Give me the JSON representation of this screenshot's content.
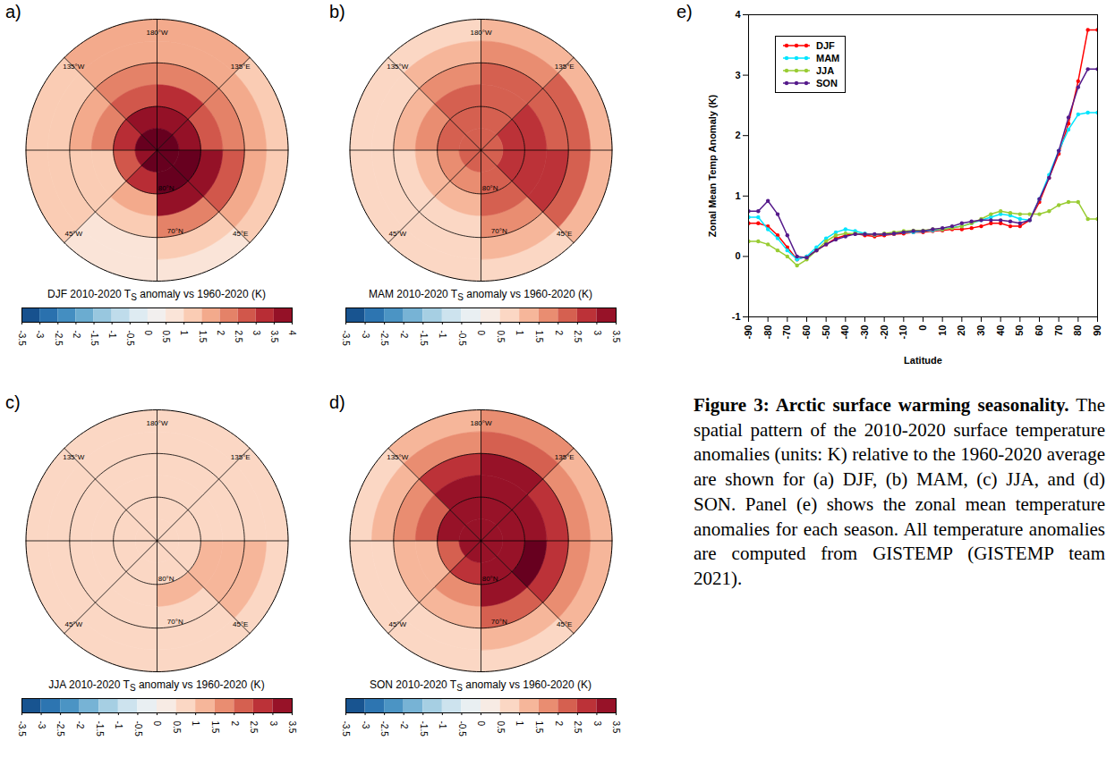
{
  "chart_data": [
    {
      "type": "map",
      "panel": "a)",
      "title": {
        "before": "DJF 2010-2020 T",
        "sub": "S",
        "after": " anomaly vs 1960-2020 (K)"
      },
      "lat_edges": [
        60,
        65,
        70,
        75,
        80,
        85,
        90
      ],
      "lon_edges": [
        -180,
        -135,
        -90,
        -45,
        0,
        45,
        90,
        135,
        180
      ],
      "cells": [
        [
          1.5,
          1.0,
          1.0,
          0.8,
          0.9,
          1.2,
          1.3,
          1.5
        ],
        [
          1.8,
          1.3,
          1.2,
          0.8,
          1.2,
          1.8,
          1.6,
          1.9
        ],
        [
          2.3,
          1.6,
          1.0,
          1.0,
          2.2,
          2.8,
          2.0,
          2.4
        ],
        [
          2.8,
          2.2,
          1.3,
          1.6,
          3.5,
          3.6,
          2.8,
          3.0
        ],
        [
          3.5,
          3.2,
          2.5,
          3.0,
          4.0,
          4.0,
          3.6,
          3.6
        ],
        [
          4.0,
          4.0,
          3.8,
          4.0,
          4.0,
          4.0,
          4.0,
          4.0
        ]
      ],
      "colorbar": {
        "range": [
          -3.5,
          4
        ],
        "ticks": [
          -3.5,
          -3,
          -2.5,
          -2,
          -1.5,
          -1,
          -0.5,
          0,
          0.5,
          1,
          1.5,
          2,
          2.5,
          3,
          3.5,
          4
        ]
      },
      "parallels": [
        {
          "value": 70,
          "label": "70°N"
        },
        {
          "value": 80,
          "label": "80°N"
        }
      ],
      "meridians": [
        {
          "value": 180,
          "label": "180°W"
        },
        {
          "value": -135,
          "label": "135°W"
        },
        {
          "value": -90
        },
        {
          "value": -45,
          "label": "45°W"
        },
        {
          "value": 0
        },
        {
          "value": 45,
          "label": "45°E"
        },
        {
          "value": 90
        },
        {
          "value": 135,
          "label": "135°E"
        }
      ]
    },
    {
      "type": "map",
      "panel": "b)",
      "title": {
        "before": "MAM 2010-2020 T",
        "sub": "S",
        "after": " anomaly vs 1960-2020 (K)"
      },
      "lat_edges": [
        60,
        65,
        70,
        75,
        80,
        85,
        90
      ],
      "lon_edges": [
        -180,
        -135,
        -90,
        -45,
        0,
        45,
        90,
        135,
        180
      ],
      "cells": [
        [
          0.8,
          0.6,
          0.6,
          0.5,
          0.8,
          1.2,
          1.4,
          1.0
        ],
        [
          1.3,
          0.9,
          0.7,
          0.5,
          1.2,
          2.0,
          2.0,
          1.5
        ],
        [
          1.8,
          1.2,
          0.8,
          0.8,
          1.8,
          2.5,
          2.3,
          2.0
        ],
        [
          2.0,
          1.6,
          1.0,
          1.2,
          2.2,
          2.7,
          2.5,
          2.3
        ],
        [
          2.2,
          2.0,
          1.6,
          1.8,
          2.4,
          2.6,
          2.5,
          2.4
        ],
        [
          2.4,
          2.4,
          2.3,
          2.3,
          2.4,
          2.4,
          2.4,
          2.4
        ]
      ],
      "colorbar": {
        "range": [
          -3.5,
          3.5
        ],
        "ticks": [
          -3.5,
          -3,
          -2.5,
          -2,
          -1.5,
          -1,
          -0.5,
          0,
          0.5,
          1,
          1.5,
          2,
          2.5,
          3,
          3.5
        ]
      },
      "parallels": [
        {
          "value": 70,
          "label": "70°N"
        },
        {
          "value": 80,
          "label": "80°N"
        }
      ],
      "meridians": [
        {
          "value": 180,
          "label": "180°W"
        },
        {
          "value": -135,
          "label": "135°W"
        },
        {
          "value": -90
        },
        {
          "value": -45,
          "label": "45°W"
        },
        {
          "value": 0
        },
        {
          "value": 45,
          "label": "45°E"
        },
        {
          "value": 90
        },
        {
          "value": 135,
          "label": "135°E"
        }
      ]
    },
    {
      "type": "map",
      "panel": "c)",
      "title": {
        "before": "JJA 2010-2020 T",
        "sub": "S",
        "after": " anomaly vs 1960-2020 (K)"
      },
      "lat_edges": [
        60,
        65,
        70,
        75,
        80,
        85,
        90
      ],
      "lon_edges": [
        -180,
        -135,
        -90,
        -45,
        0,
        45,
        90,
        135,
        180
      ],
      "cells": [
        [
          0.7,
          0.7,
          0.6,
          0.5,
          0.6,
          0.8,
          0.8,
          0.7
        ],
        [
          0.7,
          0.6,
          0.7,
          0.6,
          0.7,
          1.0,
          0.8,
          0.7
        ],
        [
          0.6,
          0.6,
          0.7,
          0.6,
          0.9,
          1.3,
          0.9,
          0.7
        ],
        [
          0.6,
          0.6,
          0.6,
          0.6,
          1.0,
          1.2,
          0.8,
          0.7
        ],
        [
          0.6,
          0.6,
          0.6,
          0.6,
          0.8,
          0.9,
          0.7,
          0.6
        ],
        [
          0.6,
          0.6,
          0.6,
          0.6,
          0.6,
          0.6,
          0.6,
          0.6
        ]
      ],
      "colorbar": {
        "range": [
          -3.5,
          3.5
        ],
        "ticks": [
          -3.5,
          -3,
          -2.5,
          -2,
          -1.5,
          -1,
          -0.5,
          0,
          0.5,
          1,
          1.5,
          2,
          2.5,
          3,
          3.5
        ]
      },
      "parallels": [
        {
          "value": 70,
          "label": "70°N"
        },
        {
          "value": 80,
          "label": "80°N"
        }
      ],
      "meridians": [
        {
          "value": 180,
          "label": "180°W"
        },
        {
          "value": -135,
          "label": "135°W"
        },
        {
          "value": -90
        },
        {
          "value": -45,
          "label": "45°W"
        },
        {
          "value": 0
        },
        {
          "value": 45,
          "label": "45°E"
        },
        {
          "value": 90
        },
        {
          "value": 135,
          "label": "135°E"
        }
      ]
    },
    {
      "type": "map",
      "panel": "d)",
      "title": {
        "before": "SON 2010-2020 T",
        "sub": "S",
        "after": " anomaly vs 1960-2020 (K)"
      },
      "lat_edges": [
        60,
        65,
        70,
        75,
        80,
        85,
        90
      ],
      "lon_edges": [
        -180,
        -135,
        -90,
        -45,
        0,
        45,
        90,
        135,
        180
      ],
      "cells": [
        [
          1.3,
          0.8,
          0.8,
          0.6,
          0.8,
          1.0,
          1.3,
          1.6
        ],
        [
          1.8,
          1.0,
          0.9,
          0.6,
          1.2,
          1.8,
          1.8,
          2.2
        ],
        [
          2.6,
          1.6,
          1.0,
          1.0,
          2.0,
          2.8,
          2.8,
          3.0
        ],
        [
          3.0,
          2.3,
          1.4,
          1.6,
          3.0,
          3.6,
          3.3,
          3.3
        ],
        [
          3.2,
          3.0,
          2.4,
          2.6,
          3.2,
          3.4,
          3.3,
          3.3
        ],
        [
          3.1,
          3.1,
          3.1,
          3.1,
          3.1,
          3.1,
          3.1,
          3.1
        ]
      ],
      "colorbar": {
        "range": [
          -3.5,
          3.5
        ],
        "ticks": [
          -3.5,
          -3,
          -2.5,
          -2,
          -1.5,
          -1,
          -0.5,
          0,
          0.5,
          1,
          1.5,
          2,
          2.5,
          3,
          3.5
        ]
      },
      "parallels": [
        {
          "value": 70,
          "label": "70°N"
        },
        {
          "value": 80,
          "label": "80°N"
        }
      ],
      "meridians": [
        {
          "value": 180,
          "label": "180°W"
        },
        {
          "value": -135,
          "label": "135°W"
        },
        {
          "value": -90
        },
        {
          "value": -45,
          "label": "45°W"
        },
        {
          "value": 0
        },
        {
          "value": 45,
          "label": "45°E"
        },
        {
          "value": 90
        },
        {
          "value": 135,
          "label": "135°E"
        }
      ]
    },
    {
      "type": "line",
      "panel": "e)",
      "x_label": "Latitude",
      "y_label": "Zonal Mean Temp Anomaly (K)",
      "x": [
        -90,
        -85,
        -80,
        -75,
        -70,
        -65,
        -60,
        -55,
        -50,
        -45,
        -40,
        -35,
        -30,
        -25,
        -20,
        -15,
        -10,
        -5,
        0,
        5,
        10,
        15,
        20,
        25,
        30,
        35,
        40,
        45,
        50,
        55,
        60,
        65,
        70,
        75,
        80,
        85,
        90
      ],
      "series": [
        {
          "name": "DJF",
          "color": "#ff0000",
          "values": [
            0.55,
            0.55,
            0.5,
            0.35,
            0.15,
            -0.05,
            0.0,
            0.1,
            0.2,
            0.3,
            0.35,
            0.38,
            0.35,
            0.33,
            0.35,
            0.37,
            0.38,
            0.4,
            0.4,
            0.42,
            0.43,
            0.45,
            0.45,
            0.47,
            0.5,
            0.55,
            0.55,
            0.5,
            0.5,
            0.6,
            0.9,
            1.3,
            1.7,
            2.2,
            2.9,
            3.75,
            3.75
          ]
        },
        {
          "name": "MAM",
          "color": "#00e5ff",
          "values": [
            0.65,
            0.65,
            0.45,
            0.3,
            0.1,
            -0.05,
            0.0,
            0.15,
            0.3,
            0.4,
            0.45,
            0.42,
            0.38,
            0.36,
            0.37,
            0.38,
            0.4,
            0.4,
            0.42,
            0.43,
            0.45,
            0.48,
            0.5,
            0.55,
            0.6,
            0.65,
            0.7,
            0.68,
            0.62,
            0.6,
            0.95,
            1.35,
            1.75,
            2.1,
            2.35,
            2.38,
            2.38
          ]
        },
        {
          "name": "JJA",
          "color": "#99cc33",
          "values": [
            0.25,
            0.25,
            0.2,
            0.1,
            0.0,
            -0.15,
            -0.05,
            0.1,
            0.25,
            0.35,
            0.38,
            0.38,
            0.37,
            0.36,
            0.38,
            0.4,
            0.42,
            0.43,
            0.43,
            0.45,
            0.45,
            0.47,
            0.5,
            0.55,
            0.62,
            0.7,
            0.75,
            0.72,
            0.7,
            0.7,
            0.7,
            0.75,
            0.85,
            0.9,
            0.9,
            0.62,
            0.62
          ]
        },
        {
          "name": "SON",
          "color": "#551a8b",
          "values": [
            0.75,
            0.75,
            0.92,
            0.7,
            0.35,
            0.0,
            -0.02,
            0.1,
            0.2,
            0.28,
            0.33,
            0.37,
            0.37,
            0.37,
            0.37,
            0.38,
            0.4,
            0.42,
            0.42,
            0.45,
            0.47,
            0.5,
            0.55,
            0.58,
            0.6,
            0.6,
            0.6,
            0.58,
            0.55,
            0.6,
            0.95,
            1.3,
            1.75,
            2.3,
            2.8,
            3.1,
            3.1
          ]
        }
      ],
      "marker": "circle",
      "xlim": [
        -90,
        90
      ],
      "xticks": [
        -90,
        -80,
        -70,
        -60,
        -50,
        -40,
        -30,
        -20,
        -10,
        0,
        10,
        20,
        30,
        40,
        50,
        60,
        70,
        80,
        90
      ],
      "ylim": [
        -1,
        4
      ],
      "yticks": [
        -1,
        0,
        1,
        2,
        3,
        4
      ],
      "legend": "top-left"
    }
  ],
  "caption": {
    "bold": "Figure 3: Arctic surface warming seasonality.",
    "text": " The spatial pattern of the 2010-2020 surface temperature anomalies (units: K) relative to the 1960-2020 average are shown for (a) DJF, (b) MAM, (c) JJA, and (d) SON. Panel (e) shows the zonal mean temperature anomalies for each season. All temperature anomalies are computed from GISTEMP (GISTEMP team 2021)."
  }
}
